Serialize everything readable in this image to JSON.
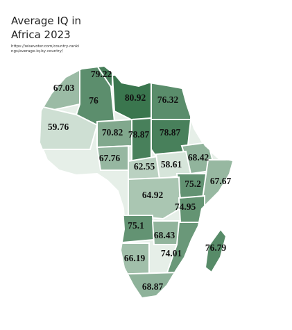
{
  "header": {
    "title": "Average IQ in Africa 2023",
    "source": "https://wisevoter.com/country-rankings/average-iq-by-country/"
  },
  "map": {
    "values": [
      79.22,
      67.03,
      76,
      80.92,
      76.32,
      59.76,
      70.82,
      78.87,
      78.87,
      68.42,
      67.76,
      62.55,
      58.61,
      75.2,
      67.67,
      64.92,
      74.95,
      75.1,
      68.43,
      74.01,
      66.19,
      76.79,
      68.87
    ]
  }
}
